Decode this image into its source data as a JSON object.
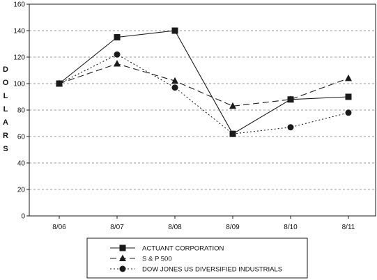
{
  "chart_data": {
    "type": "line",
    "categories": [
      "8/06",
      "8/07",
      "8/08",
      "8/09",
      "8/10",
      "8/11"
    ],
    "ylabel": "DOLLARS",
    "ylim": [
      0,
      160
    ],
    "yticks": [
      0,
      20,
      40,
      60,
      80,
      100,
      120,
      140,
      160
    ],
    "grid": "horizontal dashed",
    "legend_position": "bottom-center",
    "series": [
      {
        "name": "ACTUANT CORPORATION",
        "line_style": "solid",
        "marker": "square",
        "values": [
          100,
          135,
          140,
          62,
          88,
          90
        ]
      },
      {
        "name": "S & P 500",
        "line_style": "dashed",
        "marker": "triangle",
        "values": [
          100,
          115,
          102,
          83,
          88,
          104
        ]
      },
      {
        "name": "DOW JONES US DIVERSIFIED INDUSTRIALS",
        "line_style": "dotted",
        "marker": "circle",
        "values": [
          100,
          122,
          97,
          62,
          67,
          78
        ]
      }
    ],
    "colors": {
      "series": "#1a1a1a",
      "grid": "#9a9a9a",
      "axis": "#1a1a1a"
    }
  }
}
